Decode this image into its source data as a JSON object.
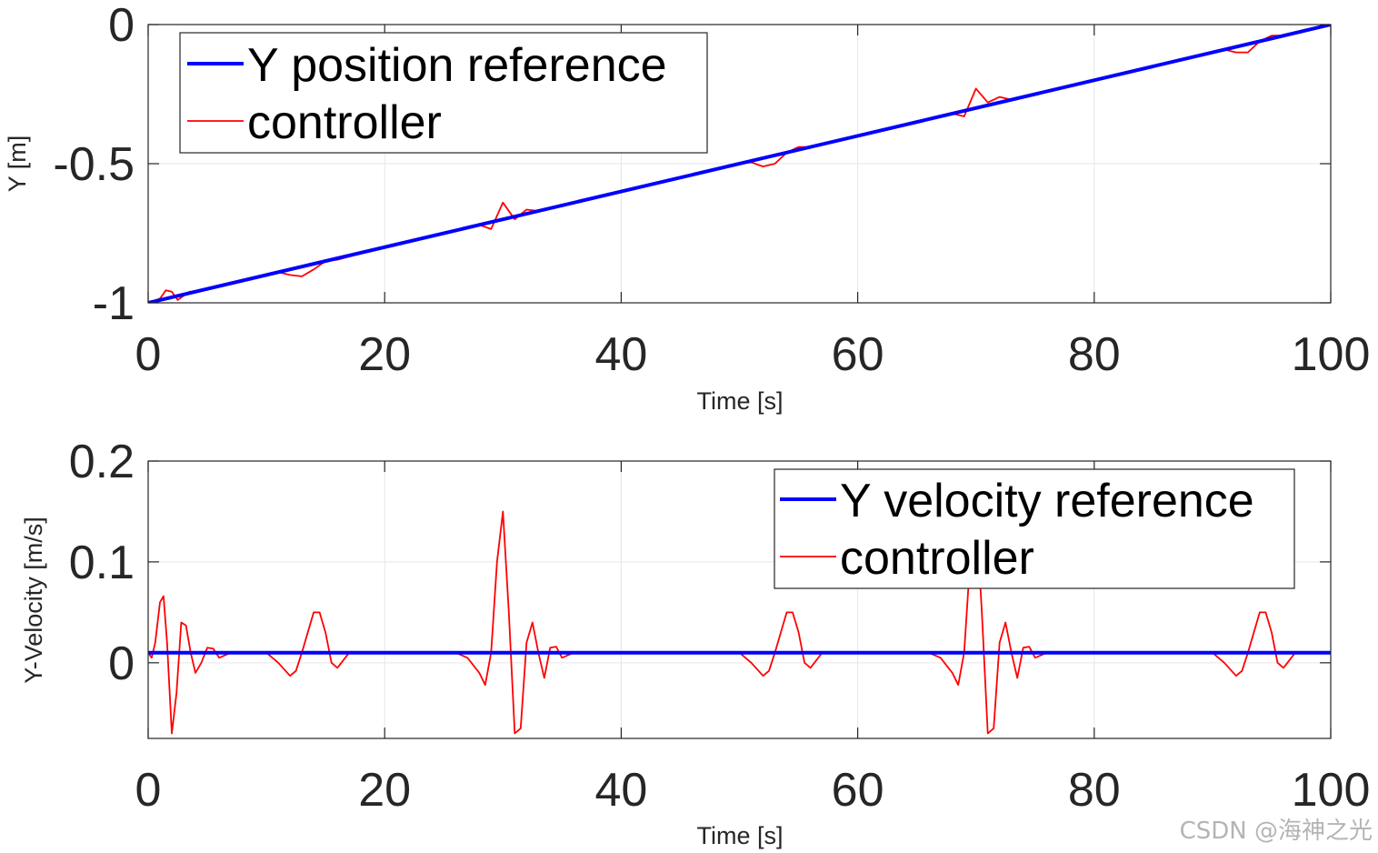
{
  "watermark": "CSDN @海神之光",
  "colors": {
    "reference": "#0000ff",
    "controller": "#ff0000",
    "grid": "#e6e6e6",
    "axis": "#262626"
  },
  "chart_data": [
    {
      "type": "line",
      "xlabel": "Time [s]",
      "ylabel": "Y [m]",
      "xlim": [
        0,
        100
      ],
      "ylim": [
        -1,
        0
      ],
      "xticks": [
        "0",
        "20",
        "40",
        "60",
        "80",
        "100"
      ],
      "yticks": [
        "-1",
        "-0.5",
        "0"
      ],
      "grid": true,
      "legend_position": "top-left",
      "series": [
        {
          "name": "Y position reference",
          "color": "#0000ff",
          "x": [
            0,
            100
          ],
          "y": [
            -1,
            0
          ]
        },
        {
          "name": "controller",
          "color": "#ff0000",
          "x": [
            0,
            1,
            1.5,
            2,
            2.5,
            3,
            3.5,
            4,
            6,
            10,
            11,
            12,
            13,
            14,
            15,
            16,
            20,
            26,
            28,
            29,
            30,
            31,
            32,
            33,
            34,
            36,
            40,
            50,
            51,
            52,
            53,
            54,
            55,
            56,
            60,
            66,
            68,
            69,
            70,
            71,
            72,
            73,
            74,
            76,
            80,
            90,
            91,
            92,
            93,
            94,
            95,
            96,
            100
          ],
          "y": [
            -1,
            -0.985,
            -0.955,
            -0.96,
            -0.99,
            -0.975,
            -0.96,
            -0.96,
            -0.94,
            -0.9,
            -0.89,
            -0.9,
            -0.905,
            -0.88,
            -0.85,
            -0.845,
            -0.8,
            -0.74,
            -0.72,
            -0.735,
            -0.64,
            -0.7,
            -0.665,
            -0.67,
            -0.66,
            -0.64,
            -0.6,
            -0.5,
            -0.495,
            -0.51,
            -0.5,
            -0.46,
            -0.44,
            -0.44,
            -0.4,
            -0.34,
            -0.32,
            -0.33,
            -0.23,
            -0.28,
            -0.26,
            -0.27,
            -0.26,
            -0.24,
            -0.2,
            -0.1,
            -0.09,
            -0.1,
            -0.1,
            -0.06,
            -0.04,
            -0.04,
            0
          ]
        }
      ]
    },
    {
      "type": "line",
      "xlabel": "Time [s]",
      "ylabel": "Y-Velocity [m/s]",
      "xlim": [
        0,
        100
      ],
      "ylim": [
        -0.075,
        0.2
      ],
      "xticks": [
        "0",
        "20",
        "40",
        "60",
        "80",
        "100"
      ],
      "yticks": [
        "0",
        "0.1",
        "0.2"
      ],
      "grid": true,
      "legend_position": "top-right",
      "series": [
        {
          "name": "Y velocity reference",
          "color": "#0000ff",
          "x": [
            0,
            100
          ],
          "y": [
            0.01,
            0.01
          ]
        },
        {
          "name": "controller",
          "color": "#ff0000",
          "x": [
            0,
            0.3,
            0.6,
            1,
            1.3,
            1.6,
            2,
            2.4,
            2.8,
            3.2,
            3.6,
            4,
            4.5,
            5,
            5.5,
            6,
            7,
            10,
            11,
            12,
            12.5,
            13,
            13.5,
            14,
            14.5,
            15,
            15.5,
            16,
            17,
            26,
            27,
            28,
            28.5,
            29,
            29.5,
            30,
            30.5,
            31,
            31.5,
            32,
            32.5,
            33,
            33.5,
            34,
            34.5,
            35,
            36,
            50,
            51,
            52,
            52.5,
            53,
            53.5,
            54,
            54.5,
            55,
            55.5,
            56,
            57,
            66,
            67,
            68,
            68.5,
            69,
            69.5,
            70,
            70.5,
            71,
            71.5,
            72,
            72.5,
            73,
            73.5,
            74,
            74.5,
            75,
            76,
            90,
            91,
            92,
            92.5,
            93,
            93.5,
            94,
            94.5,
            95,
            95.5,
            96,
            97,
            100
          ],
          "y": [
            0.01,
            0.005,
            0.02,
            0.06,
            0.066,
            0.02,
            -0.07,
            -0.03,
            0.04,
            0.037,
            0.01,
            -0.01,
            0.0,
            0.015,
            0.014,
            0.005,
            0.01,
            0.01,
            0.0,
            -0.013,
            -0.008,
            0.01,
            0.03,
            0.05,
            0.05,
            0.03,
            0.0,
            -0.005,
            0.01,
            0.01,
            0.005,
            -0.01,
            -0.022,
            0.01,
            0.1,
            0.15,
            0.05,
            -0.07,
            -0.065,
            0.02,
            0.04,
            0.01,
            -0.015,
            0.015,
            0.016,
            0.005,
            0.01,
            0.01,
            0.0,
            -0.013,
            -0.008,
            0.01,
            0.03,
            0.05,
            0.05,
            0.03,
            0.0,
            -0.005,
            0.01,
            0.01,
            0.005,
            -0.01,
            -0.022,
            0.01,
            0.1,
            0.15,
            0.05,
            -0.07,
            -0.065,
            0.02,
            0.04,
            0.01,
            -0.015,
            0.015,
            0.016,
            0.005,
            0.01,
            0.01,
            0.0,
            -0.013,
            -0.008,
            0.01,
            0.03,
            0.05,
            0.05,
            0.03,
            0.0,
            -0.005,
            0.01,
            0.01
          ]
        }
      ]
    }
  ]
}
